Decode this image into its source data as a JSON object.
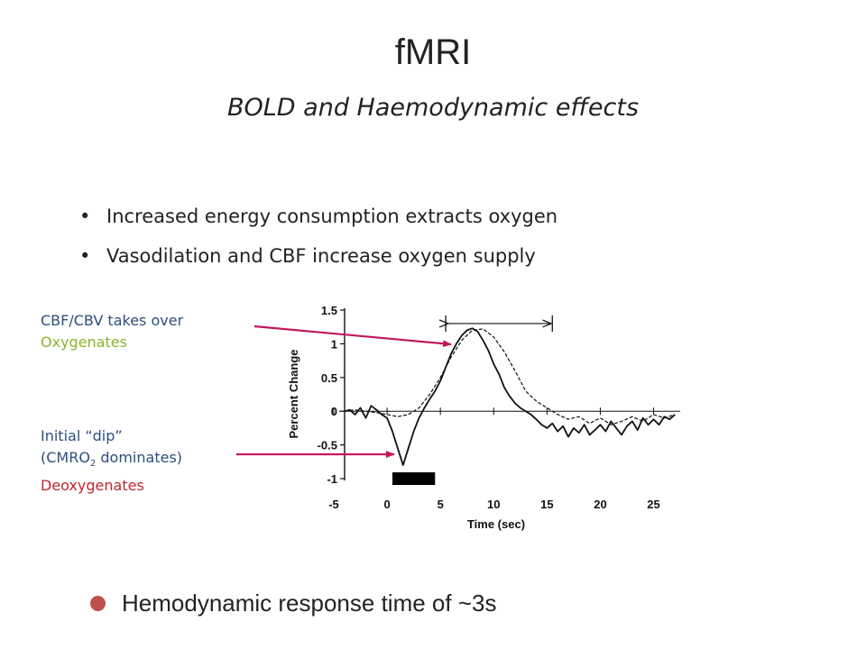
{
  "slide": {
    "title": "fMRI",
    "subtitle": "BOLD and Haemodynamic effects",
    "bullets": [
      "Increased energy consumption extracts oxygen",
      "Vasodilation and CBF increase oxygen supply"
    ],
    "bullet_glyph": "•",
    "annotations": {
      "upper": {
        "line1": "CBF/CBV takes over",
        "line2": "Oxygenates"
      },
      "lower": {
        "line1": "Initial “dip”",
        "line2_pre": "(CMRO",
        "line2_sub": "2",
        "line2_post": " dominates)",
        "line3": "Deoxygenates"
      }
    },
    "bottom_point": "Hemodynamic response time of ~3s",
    "colors": {
      "arrow": "#c2185b",
      "blue_text": "#2c4f7c",
      "green_text": "#8db32a",
      "red_text": "#c0272d",
      "bottom_dot": "#c0504d"
    }
  },
  "chart_data": {
    "type": "line",
    "xlabel": "Time (sec)",
    "ylabel": "Percent Change",
    "xlim": [
      -5,
      28
    ],
    "ylim": [
      -1,
      1.5
    ],
    "xticks": [
      "-5",
      "0",
      "5",
      "10",
      "15",
      "20",
      "25"
    ],
    "yticks": [
      "1.5",
      "1",
      "0.5",
      "0",
      "-0.5",
      "-1"
    ],
    "grid": false,
    "stimulus_block": [
      0.5,
      4.5
    ],
    "peak_duration_arrow": [
      5.5,
      15.5
    ],
    "series": [
      {
        "style": "solid",
        "x": [
          -4,
          -3.5,
          -3,
          -2.5,
          -2,
          -1.5,
          -1,
          -0.5,
          0,
          0.5,
          1,
          1.5,
          2,
          2.5,
          3,
          3.5,
          4,
          4.5,
          5,
          5.5,
          6,
          6.5,
          7,
          7.5,
          8,
          8.5,
          9,
          9.5,
          10,
          10.5,
          11,
          11.5,
          12,
          12.5,
          13,
          13.5,
          14,
          14.5,
          15,
          15.5,
          16,
          16.5,
          17,
          17.5,
          18,
          18.5,
          19,
          19.5,
          20,
          20.5,
          21,
          21.5,
          22,
          22.5,
          23,
          23.5,
          24,
          24.5,
          25,
          25.5,
          26,
          26.5,
          27
        ],
        "y": [
          0,
          0.02,
          -0.05,
          0.05,
          -0.1,
          0.08,
          0.02,
          -0.05,
          -0.1,
          -0.3,
          -0.55,
          -0.8,
          -0.55,
          -0.3,
          -0.1,
          0.05,
          0.18,
          0.3,
          0.45,
          0.65,
          0.85,
          1.0,
          1.12,
          1.2,
          1.23,
          1.18,
          1.05,
          0.9,
          0.7,
          0.55,
          0.35,
          0.22,
          0.12,
          0.05,
          0.0,
          -0.05,
          -0.12,
          -0.2,
          -0.25,
          -0.18,
          -0.3,
          -0.22,
          -0.38,
          -0.25,
          -0.32,
          -0.2,
          -0.35,
          -0.28,
          -0.2,
          -0.3,
          -0.15,
          -0.25,
          -0.35,
          -0.22,
          -0.15,
          -0.28,
          -0.1,
          -0.2,
          -0.12,
          -0.2,
          -0.08,
          -0.12,
          -0.05
        ]
      },
      {
        "style": "dashed",
        "x": [
          -4,
          -3,
          -2,
          -1,
          0,
          1,
          2,
          3,
          4,
          5,
          6,
          7,
          8,
          9,
          10,
          11,
          12,
          13,
          14,
          15,
          16,
          17,
          18,
          19,
          20,
          21,
          22,
          23,
          24,
          25,
          26,
          27
        ],
        "y": [
          0,
          0.02,
          0.0,
          -0.02,
          -0.05,
          -0.08,
          -0.05,
          0.05,
          0.25,
          0.5,
          0.8,
          1.05,
          1.2,
          1.22,
          1.1,
          0.88,
          0.6,
          0.3,
          0.15,
          0.05,
          -0.05,
          -0.12,
          -0.08,
          -0.18,
          -0.1,
          -0.2,
          -0.15,
          -0.08,
          -0.15,
          -0.05,
          -0.1,
          -0.05
        ]
      }
    ]
  }
}
